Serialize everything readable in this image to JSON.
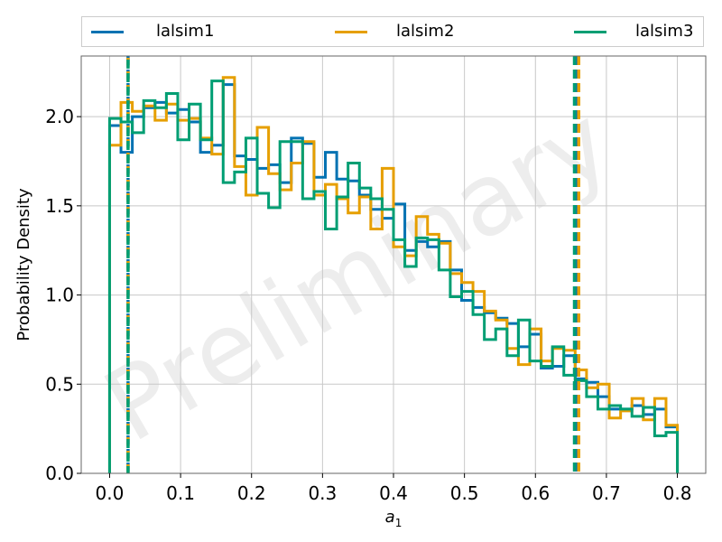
{
  "chart_data": {
    "type": "histogram",
    "title": "",
    "xlabel": "a_1",
    "ylabel": "Probability Density",
    "xlim": [
      -0.04,
      0.84
    ],
    "ylim": [
      0,
      2.34
    ],
    "xticks": [
      0.0,
      0.1,
      0.2,
      0.3,
      0.4,
      0.5,
      0.6,
      0.7,
      0.8
    ],
    "xtick_labels": [
      "0.0",
      "0.1",
      "0.2",
      "0.3",
      "0.4",
      "0.5",
      "0.6",
      "0.7",
      "0.8"
    ],
    "yticks": [
      0.0,
      0.5,
      1.0,
      1.5,
      2.0
    ],
    "ytick_labels": [
      "0.0",
      "0.5",
      "1.0",
      "1.5",
      "2.0"
    ],
    "grid": true,
    "legend_position": "top",
    "watermark": "Preliminary",
    "bin_edges_start": 0.0,
    "bin_width": 0.016,
    "series": [
      {
        "name": "lalsim1",
        "color": "#0072b2",
        "values": [
          1.95,
          1.8,
          2.0,
          2.05,
          2.08,
          2.02,
          2.04,
          1.97,
          1.8,
          1.84,
          2.18,
          1.78,
          1.76,
          1.71,
          1.73,
          1.63,
          1.88,
          1.85,
          1.66,
          1.8,
          1.65,
          1.64,
          1.56,
          1.48,
          1.43,
          1.51,
          1.25,
          1.3,
          1.27,
          1.3,
          1.14,
          0.97,
          0.93,
          0.9,
          0.87,
          0.84,
          0.71,
          0.78,
          0.59,
          0.6,
          0.66,
          0.53,
          0.51,
          0.43,
          0.36,
          0.36,
          0.38,
          0.33,
          0.36,
          0.26
        ],
        "vline": 0.658
      },
      {
        "name": "lalsim2",
        "color": "#e69f00",
        "values": [
          1.84,
          2.08,
          2.03,
          2.06,
          1.98,
          2.07,
          1.98,
          1.99,
          1.88,
          1.79,
          2.22,
          1.72,
          1.56,
          1.94,
          1.68,
          1.59,
          1.74,
          1.86,
          1.56,
          1.62,
          1.54,
          1.46,
          1.55,
          1.37,
          1.71,
          1.27,
          1.22,
          1.44,
          1.34,
          1.29,
          1.12,
          1.07,
          1.02,
          0.91,
          0.86,
          0.7,
          0.61,
          0.81,
          0.63,
          0.7,
          0.69,
          0.58,
          0.48,
          0.5,
          0.31,
          0.35,
          0.42,
          0.3,
          0.42,
          0.27
        ],
        "vline": 0.661
      },
      {
        "name": "lalsim3",
        "color": "#009e73",
        "values": [
          1.99,
          1.97,
          1.91,
          2.09,
          2.05,
          2.13,
          1.87,
          2.07,
          1.87,
          2.2,
          1.63,
          1.69,
          1.88,
          1.57,
          1.49,
          1.86,
          1.86,
          1.54,
          1.58,
          1.37,
          1.55,
          1.74,
          1.6,
          1.54,
          1.48,
          1.31,
          1.16,
          1.32,
          1.31,
          1.14,
          0.99,
          1.02,
          0.89,
          0.75,
          0.81,
          0.66,
          0.86,
          0.63,
          0.6,
          0.71,
          0.55,
          0.52,
          0.43,
          0.36,
          0.38,
          0.36,
          0.32,
          0.37,
          0.21,
          0.23
        ],
        "vline": 0.655
      }
    ],
    "shared_lower_vline": 0.026
  }
}
